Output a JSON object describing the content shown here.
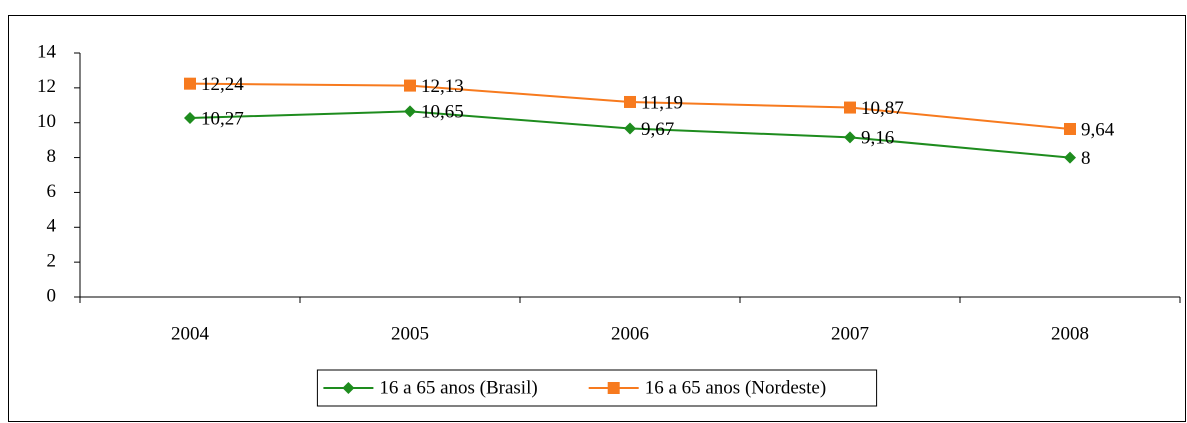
{
  "chart_data": {
    "type": "line",
    "categories": [
      "2004",
      "2005",
      "2006",
      "2007",
      "2008"
    ],
    "series": [
      {
        "name": "16 a 65 anos (Brasil)",
        "color": "#1e8c1e",
        "marker": "diamond",
        "values": [
          10.27,
          10.65,
          9.67,
          9.16,
          8
        ],
        "value_labels": [
          "10,27",
          "10,65",
          "9,67",
          "9,16",
          "8"
        ]
      },
      {
        "name": "16 a 65 anos (Nordeste)",
        "color": "#f77a1e",
        "marker": "square",
        "values": [
          12.24,
          12.13,
          11.19,
          10.87,
          9.64
        ],
        "value_labels": [
          "12,24",
          "12,13",
          "11,19",
          "10,87",
          "9,64"
        ]
      }
    ],
    "ylim": [
      0,
      14
    ],
    "yticks": [
      0,
      2,
      4,
      6,
      8,
      10,
      12,
      14
    ],
    "grid": false,
    "legend": "bottom"
  }
}
